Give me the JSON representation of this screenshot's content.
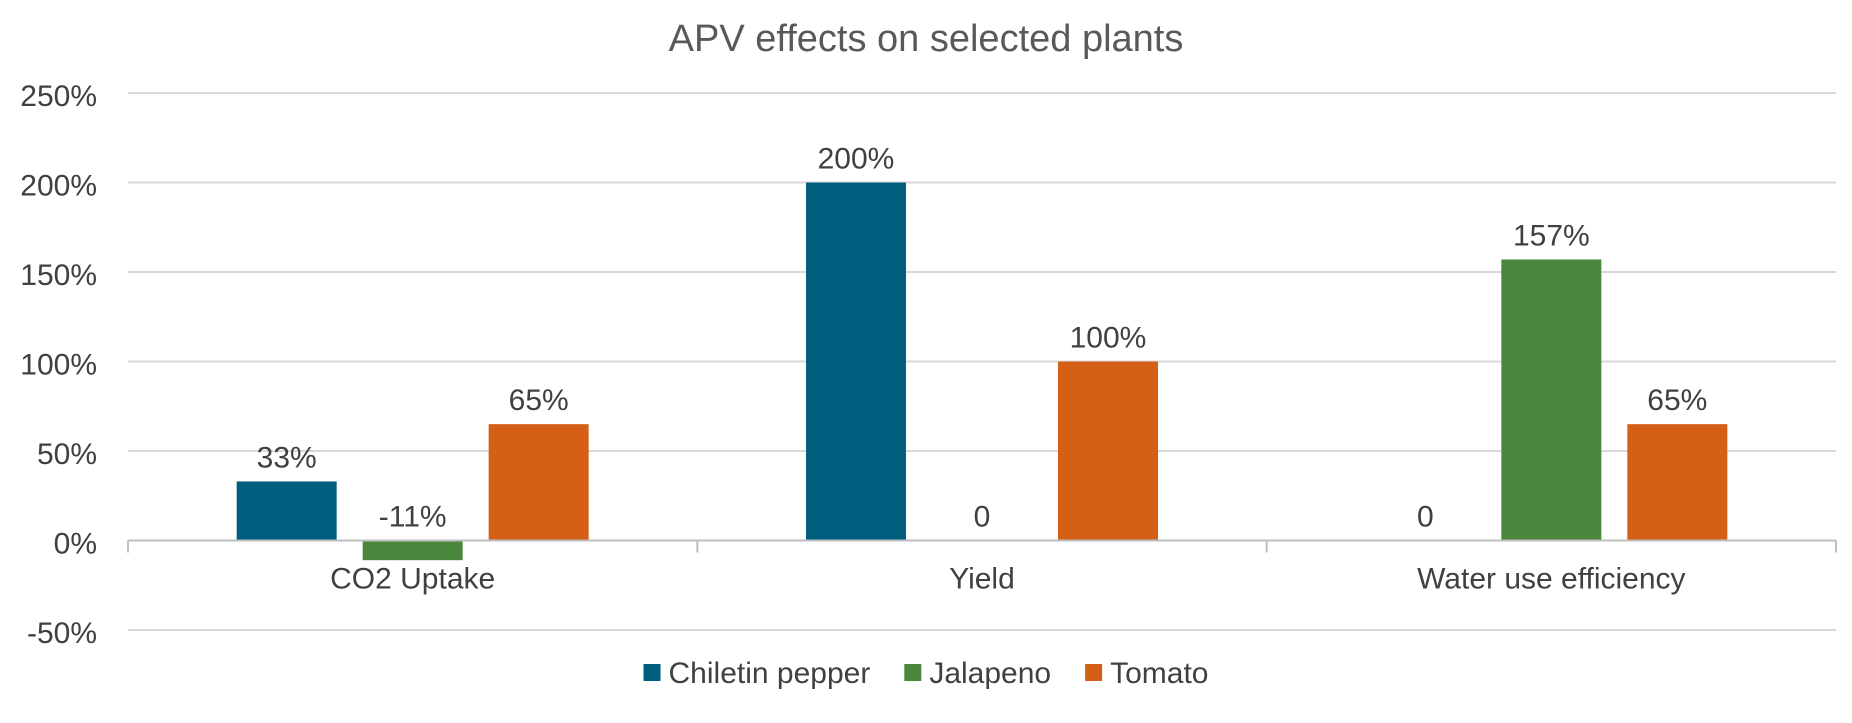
{
  "chart_data": {
    "type": "bar",
    "title": "APV effects on selected plants",
    "xlabel": "",
    "ylabel": "",
    "categories": [
      "CO2 Uptake",
      "Yield",
      "Water use efficiency"
    ],
    "series": [
      {
        "name": "Chiletin pepper",
        "color": "#005f7f",
        "values": [
          0.33,
          2.0,
          0
        ],
        "labels": [
          "33%",
          "200%",
          "0"
        ]
      },
      {
        "name": "Jalapeno",
        "color": "#4a873c",
        "values": [
          -0.11,
          0,
          1.57
        ],
        "labels": [
          "-11%",
          "0",
          "157%"
        ]
      },
      {
        "name": "Tomato",
        "color": "#d45f16",
        "values": [
          0.65,
          1.0,
          0.65
        ],
        "labels": [
          "65%",
          "100%",
          "65%"
        ]
      }
    ],
    "ylim": [
      -0.5,
      2.5
    ],
    "yticks": [
      2.5,
      2.0,
      1.5,
      1.0,
      0.5,
      0,
      -0.5
    ],
    "ytick_labels": [
      "250%",
      "200%",
      "150%",
      "100%",
      "50%",
      "0%",
      "-50%"
    ],
    "grid": true,
    "legend_position": "bottom",
    "colors": {
      "text": "#404040",
      "gridline": "#d9d9d9",
      "axis": "#bfbfbf"
    }
  }
}
